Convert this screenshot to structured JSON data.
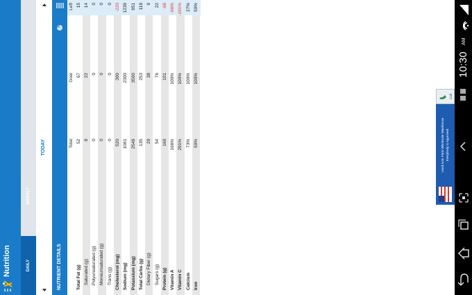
{
  "app_bar": {
    "title": "Nutrition"
  },
  "tabs": [
    "DAILY",
    "WEEKLY"
  ],
  "date_nav": {
    "label": "TODAY"
  },
  "section": {
    "title": "NUTRIENT DETAILS"
  },
  "table": {
    "columns": [
      "Total",
      "Goal",
      "Left"
    ],
    "rows": [
      [
        "Total Fat (g)",
        "52",
        "67",
        "15"
      ],
      [
        "Saturated (g)",
        "8",
        "22",
        "14"
      ],
      [
        "Polyunsaturated (g)",
        "0",
        "0",
        "0"
      ],
      [
        "Monounsaturated (g)",
        "0",
        "0",
        "0"
      ],
      [
        "Trans (g)",
        "0",
        "0",
        "0"
      ],
      [
        "Cholesterol (mg)",
        "520",
        "300",
        "-220"
      ],
      [
        "Sodium (mg)",
        "1061",
        "2300",
        "1239"
      ],
      [
        "Potassium (mg)",
        "2549",
        "3500",
        "951"
      ],
      [
        "Total Carbs (g)",
        "135",
        "253",
        "118"
      ],
      [
        "Dietary Fiber (g)",
        "29",
        "38",
        "9"
      ],
      [
        "Sugars (g)",
        "54",
        "76",
        "22"
      ],
      [
        "Protein (g)",
        "169",
        "101",
        "-68"
      ],
      [
        "Vitamin A",
        "166%",
        "100%",
        "-66%"
      ],
      [
        "Vitamin C",
        "291%",
        "100%",
        "-191%"
      ],
      [
        "Calcium",
        "73%",
        "100%",
        "27%"
      ],
      [
        "Iron",
        "50%",
        "100%",
        "50%"
      ]
    ]
  },
  "ad": {
    "line1": "Used Auto Parts Wholesale Warehouse",
    "line2": "Everybody Is Approved",
    "button": "Call"
  },
  "status_bar": {
    "time": "10:30",
    "ampm": "AM"
  }
}
